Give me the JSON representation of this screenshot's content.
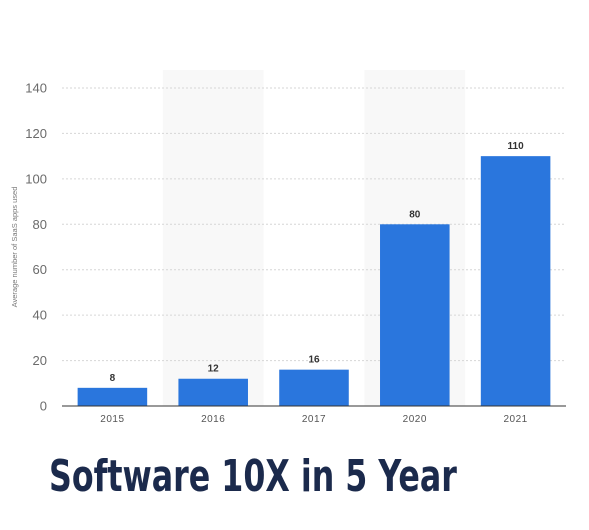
{
  "headline": "Software 10X in 5 Year",
  "chart_data": {
    "type": "bar",
    "categories": [
      "2015",
      "2016",
      "2017",
      "2020",
      "2021"
    ],
    "values": [
      8,
      12,
      16,
      80,
      110
    ],
    "data_labels": [
      "8",
      "12",
      "16",
      "80",
      "110"
    ],
    "title": "",
    "xlabel": "",
    "ylabel": "Average number of SaaS apps used",
    "ylim": [
      0,
      140
    ],
    "yticks": [
      0,
      20,
      40,
      60,
      80,
      100,
      120,
      140
    ],
    "grid": true,
    "bar_color": "#2a76dd",
    "band_color": "#f8f8f8"
  }
}
